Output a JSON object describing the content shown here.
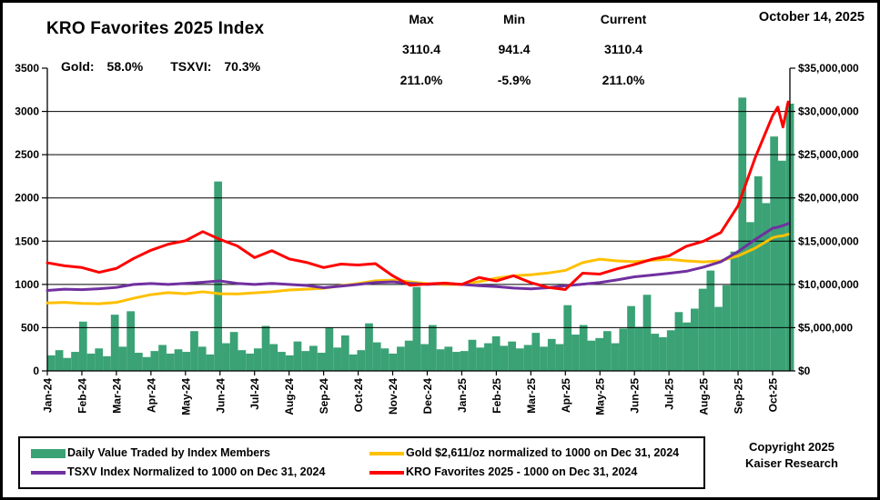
{
  "header": {
    "title": "KRO Favorites 2025 Index",
    "gold_label": "Gold:",
    "gold_value": "58.0%",
    "tsxvi_label": "TSXVI:",
    "tsxvi_value": "70.3%",
    "date": "October 14, 2025",
    "stats": {
      "max_label": "Max",
      "min_label": "Min",
      "current_label": "Current",
      "max_index": "3110.4",
      "min_index": "941.4",
      "current_index": "3110.4",
      "max_pct": "211.0%",
      "min_pct": "-5.9%",
      "current_pct": "211.0%"
    }
  },
  "footer": {
    "copyright_line1": "Copyright 2025",
    "copyright_line2": "Kaiser Research"
  },
  "colors": {
    "bars_green": "#3aa275",
    "gold_line": "#ffc000",
    "tsxv_line": "#7030a0",
    "kro_line": "#ff0000",
    "axis_black": "#000000"
  },
  "legend": [
    {
      "type": "bar",
      "color": "#3aa275",
      "label": "Daily Value Traded by Index Members"
    },
    {
      "type": "line",
      "color": "#ffc000",
      "label": "Gold $2,611/oz normalized to 1000 on Dec 31, 2024"
    },
    {
      "type": "line",
      "color": "#7030a0",
      "label": "TSXV Index Normalized to 1000 on Dec 31, 2024"
    },
    {
      "type": "line",
      "color": "#ff0000",
      "label": "KRO Favorites 2025 - 1000 on Dec 31, 2024"
    }
  ],
  "chart_data": {
    "type": "combo-bar-line",
    "title": "KRO Favorites 2025 Index",
    "grid": "horizontal",
    "x_labels": [
      "Jan-24",
      "Feb-24",
      "Mar-24",
      "Apr-24",
      "May-24",
      "Jun-24",
      "Jul-24",
      "Aug-24",
      "Sep-24",
      "Oct-24",
      "Nov-24",
      "Dec-24",
      "Jan-25",
      "Feb-25",
      "Mar-25",
      "Apr-25",
      "May-25",
      "Jun-25",
      "Jul-25",
      "Aug-25",
      "Sep-25",
      "Oct-25"
    ],
    "left_axis": {
      "min": 0,
      "max": 3500,
      "step": 500,
      "tick_labels": [
        "3500",
        "3000",
        "2500",
        "2000",
        "1500",
        "1000",
        "500",
        "0"
      ]
    },
    "right_axis": {
      "min": 0,
      "max": 35000000,
      "step": 5000000,
      "tick_labels": [
        "$35,000,000",
        "$30,000,000",
        "$25,000,000",
        "$20,000,000",
        "$15,000,000",
        "$10,000,000",
        "$5,000,000",
        "$0"
      ]
    },
    "bars": {
      "name": "Daily Value Traded by Index Members",
      "axis": "right",
      "unit": "millions USD",
      "color": "#3aa275",
      "x_interval_weeks": 1,
      "values_musd": [
        1.8,
        2.4,
        1.5,
        2.2,
        5.7,
        2.0,
        2.6,
        1.7,
        6.5,
        2.8,
        6.9,
        2.1,
        1.6,
        2.3,
        3.0,
        2.0,
        2.5,
        2.2,
        4.6,
        2.8,
        1.9,
        21.9,
        3.2,
        4.5,
        2.4,
        2.0,
        2.6,
        5.2,
        3.1,
        2.2,
        1.8,
        3.4,
        2.3,
        2.9,
        2.1,
        5.0,
        2.7,
        4.1,
        1.9,
        2.4,
        5.5,
        3.3,
        2.6,
        2.0,
        2.8,
        3.5,
        9.7,
        3.1,
        5.3,
        2.5,
        2.8,
        2.2,
        2.3,
        3.6,
        2.7,
        3.2,
        4.0,
        2.9,
        3.4,
        2.6,
        3.0,
        4.4,
        2.8,
        3.7,
        3.1,
        7.6,
        4.2,
        5.3,
        3.5,
        3.8,
        4.6,
        3.2,
        4.9,
        7.5,
        5.1,
        8.8,
        4.3,
        3.9,
        4.7,
        6.8,
        5.6,
        7.2,
        9.5,
        11.6,
        7.4,
        9.9,
        13.8,
        31.6,
        17.2,
        22.5,
        19.4,
        27.1,
        24.3,
        30.9
      ]
    },
    "x_months": [
      0,
      0.5,
      1,
      1.5,
      2,
      2.5,
      3,
      3.5,
      4,
      4.5,
      5,
      5.5,
      6,
      6.5,
      7,
      7.5,
      8,
      8.5,
      9,
      9.5,
      10,
      10.5,
      11,
      11.5,
      12,
      12.5,
      13,
      13.5,
      14,
      14.5,
      15,
      15.5,
      16,
      16.5,
      17,
      17.5,
      18,
      18.5,
      19,
      19.5,
      20,
      20.5,
      21,
      21.15,
      21.3,
      21.45
    ],
    "series": [
      {
        "name": "Gold $2,611/oz normalized to 1000 on Dec 31, 2024",
        "axis": "left",
        "color": "#ffc000",
        "values": [
          785,
          792,
          780,
          776,
          792,
          840,
          882,
          905,
          892,
          915,
          892,
          890,
          902,
          915,
          935,
          945,
          955,
          985,
          1010,
          1042,
          1050,
          1030,
          1008,
          1000,
          1000,
          1032,
          1072,
          1100,
          1112,
          1132,
          1162,
          1252,
          1292,
          1272,
          1262,
          1280,
          1290,
          1272,
          1260,
          1272,
          1330,
          1420,
          1540,
          1555,
          1562,
          1580
        ]
      },
      {
        "name": "TSXV Index Normalized to 1000 on Dec 31, 2024",
        "axis": "left",
        "color": "#7030a0",
        "values": [
          930,
          945,
          940,
          950,
          965,
          1000,
          1010,
          1000,
          1012,
          1025,
          1040,
          1012,
          1000,
          1012,
          1000,
          988,
          962,
          980,
          1000,
          1022,
          1030,
          1012,
          1000,
          1012,
          1000,
          985,
          975,
          958,
          948,
          962,
          985,
          1002,
          1022,
          1052,
          1088,
          1108,
          1128,
          1152,
          1200,
          1262,
          1380,
          1520,
          1650,
          1662,
          1680,
          1703
        ]
      },
      {
        "name": "KRO Favorites 2025 - 1000 on Dec 31, 2024",
        "axis": "left",
        "color": "#ff0000",
        "values": [
          1250,
          1215,
          1195,
          1140,
          1185,
          1300,
          1395,
          1465,
          1505,
          1610,
          1520,
          1445,
          1310,
          1390,
          1295,
          1255,
          1195,
          1235,
          1225,
          1240,
          1100,
          990,
          1005,
          1015,
          1000,
          1080,
          1040,
          1100,
          1020,
          965,
          941,
          1130,
          1120,
          1180,
          1230,
          1290,
          1330,
          1440,
          1500,
          1600,
          1910,
          2470,
          2950,
          3050,
          2820,
          3110
        ]
      }
    ],
    "annotations": {
      "max_index": 3110.4,
      "min_index": 941.4,
      "current_index": 3110.4,
      "max_pct": "211.0%",
      "min_pct": "-5.9%",
      "current_pct": "211.0%",
      "gold_change_pct": "58.0%",
      "tsxvi_change_pct": "70.3%",
      "as_of_date": "October 14, 2025"
    }
  }
}
